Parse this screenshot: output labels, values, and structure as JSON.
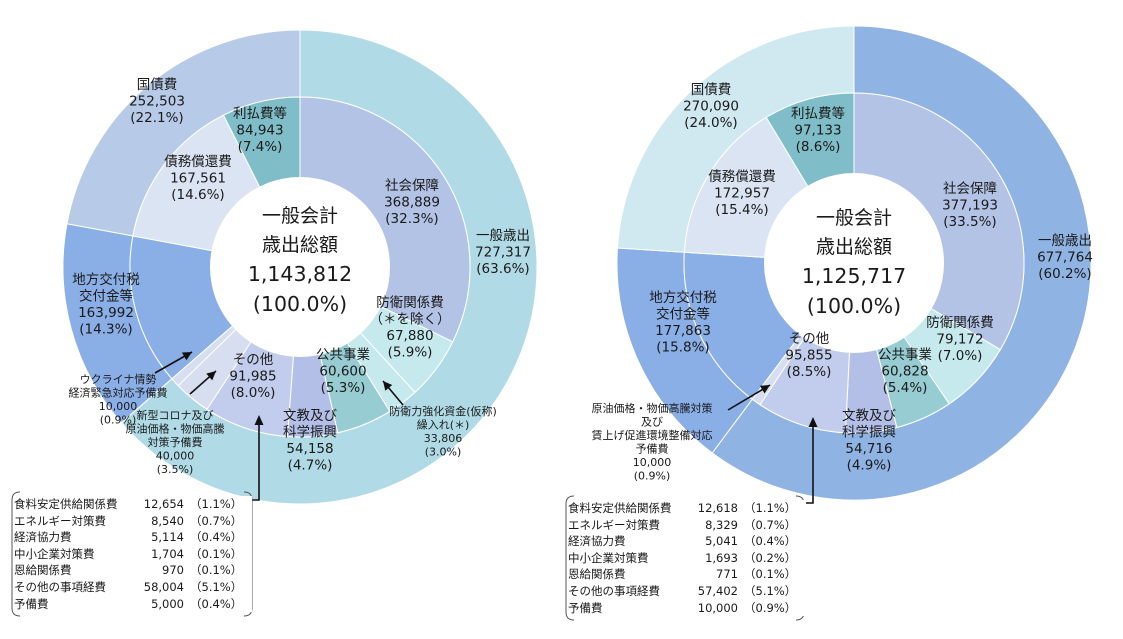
{
  "colors": {
    "general": "#b0dbe6",
    "social": "#b3c3e6",
    "defense": "#c6e9ee",
    "public_works": "#96ccd2",
    "education": "#b3bfe6",
    "other": "#c2ccec",
    "small": "#d6def0",
    "local": "#8aaee6",
    "debt_repay": "#dbe4f3",
    "interest": "#7fbec8",
    "debt_outer": "#b7cbe8",
    "right_general": "#8fb3e3",
    "right_debt_outer": "#d0e8ef"
  },
  "chart_data": [
    {
      "type": "pie",
      "center_title": [
        "一般会計",
        "歳出総額",
        "1,143,812",
        "(100.0%)"
      ],
      "outer": [
        {
          "name": "一般歳出",
          "value": 727317,
          "pct": "63.6%"
        },
        {
          "name": "地方交付税交付金等",
          "value": 163992,
          "pct": "14.3%"
        },
        {
          "name": "国債費",
          "value": 252503,
          "pct": "22.1%"
        }
      ],
      "inner": [
        {
          "name": "社会保障",
          "value": 368889,
          "pct": "32.3%"
        },
        {
          "name": "防衛関係費（＊を除く）",
          "value": 67880,
          "pct": "5.9%"
        },
        {
          "name": "防衛力強化資金(仮称)繰入れ(＊)",
          "value": 33806,
          "pct": "3.0%"
        },
        {
          "name": "公共事業",
          "value": 60600,
          "pct": "5.3%"
        },
        {
          "name": "文教及び科学振興",
          "value": 54158,
          "pct": "4.7%"
        },
        {
          "name": "その他",
          "value": 91985,
          "pct": "8.0%"
        },
        {
          "name": "新型コロナ及び原油価格・物価高騰対策予備費",
          "value": 40000,
          "pct": "3.5%"
        },
        {
          "name": "ウクライナ情勢経済緊急対応予備費",
          "value": 10000,
          "pct": "0.9%"
        },
        {
          "name": "地方交付税交付金等",
          "value": 163992,
          "pct": "14.3%"
        },
        {
          "name": "債務償還費",
          "value": 167561,
          "pct": "14.6%"
        },
        {
          "name": "利払費等",
          "value": 84943,
          "pct": "7.4%"
        }
      ],
      "labels": {
        "general": [
          "一般歳出",
          "727,317",
          "(63.6%)"
        ],
        "social": [
          "社会保障",
          "368,889",
          "(32.3%)"
        ],
        "defense": [
          "防衛関係費",
          "（＊を除く）",
          "67,880",
          "(5.9%)"
        ],
        "public": [
          "公共事業",
          "60,600",
          "(5.3%)"
        ],
        "education": [
          "文教及び",
          "科学振興",
          "54,158",
          "(4.7%)"
        ],
        "other": [
          "その他",
          "91,985",
          "(8.0%)"
        ],
        "local": [
          "地方交付税",
          "交付金等",
          "163,992",
          "(14.3%)"
        ],
        "debt_repay": [
          "債務償還費",
          "167,561",
          "(14.6%)"
        ],
        "interest": [
          "利払費等",
          "84,943",
          "(7.4%)"
        ],
        "kokusai": [
          "国債費",
          "252,503",
          "(22.1%)"
        ],
        "fund": [
          "防衛力強化資金(仮称)",
          "繰入れ(＊)",
          "33,806",
          "(3.0%)"
        ],
        "corona": [
          "新型コロナ及び",
          "原油価格・物価高騰",
          "対策予備費",
          "40,000",
          "(3.5%)"
        ],
        "ukraine": [
          "ウクライナ情勢",
          "経済緊急対応予備費",
          "10,000",
          "(0.9%)"
        ]
      },
      "breakdown": [
        {
          "name": "食料安定供給関係費",
          "value": "12,654",
          "pct": "（1.1%）"
        },
        {
          "name": "エネルギー対策費",
          "value": "8,540",
          "pct": "（0.7%）"
        },
        {
          "name": "経済協力費",
          "value": "5,114",
          "pct": "（0.4%）"
        },
        {
          "name": "中小企業対策費",
          "value": "1,704",
          "pct": "（0.1%）"
        },
        {
          "name": "恩給関係費",
          "value": "970",
          "pct": "（0.1%）"
        },
        {
          "name": "その他の事項経費",
          "value": "58,004",
          "pct": "（5.1%）"
        },
        {
          "name": "予備費",
          "value": "5,000",
          "pct": "（0.4%）"
        }
      ]
    },
    {
      "type": "pie",
      "center_title": [
        "一般会計",
        "歳出総額",
        "1,125,717",
        "(100.0%)"
      ],
      "outer": [
        {
          "name": "一般歳出",
          "value": 677764,
          "pct": "60.2%"
        },
        {
          "name": "地方交付税交付金等",
          "value": 177863,
          "pct": "15.8%"
        },
        {
          "name": "国債費",
          "value": 270090,
          "pct": "24.0%"
        }
      ],
      "inner": [
        {
          "name": "社会保障",
          "value": 377193,
          "pct": "33.5%"
        },
        {
          "name": "防衛関係費",
          "value": 79172,
          "pct": "7.0%"
        },
        {
          "name": "公共事業",
          "value": 60828,
          "pct": "5.4%"
        },
        {
          "name": "文教及び科学振興",
          "value": 54716,
          "pct": "4.9%"
        },
        {
          "name": "その他",
          "value": 95855,
          "pct": "8.5%"
        },
        {
          "name": "原油価格・物価高騰対策及び賃上げ促進環境整備対応予備費",
          "value": 10000,
          "pct": "0.9%"
        },
        {
          "name": "地方交付税交付金等",
          "value": 177863,
          "pct": "15.8%"
        },
        {
          "name": "債務償還費",
          "value": 172957,
          "pct": "15.4%"
        },
        {
          "name": "利払費等",
          "value": 97133,
          "pct": "8.6%"
        }
      ],
      "labels": {
        "general": [
          "一般歳出",
          "677,764",
          "(60.2%)"
        ],
        "social": [
          "社会保障",
          "377,193",
          "(33.5%)"
        ],
        "defense": [
          "防衛関係費",
          "79,172",
          "(7.0%)"
        ],
        "public": [
          "公共事業",
          "60,828",
          "(5.4%)"
        ],
        "education": [
          "文教及び",
          "科学振興",
          "54,716",
          "(4.9%)"
        ],
        "other": [
          "その他",
          "95,855",
          "(8.5%)"
        ],
        "local": [
          "地方交付税",
          "交付金等",
          "177,863",
          "(15.8%)"
        ],
        "debt_repay": [
          "債務償還費",
          "172,957",
          "(15.4%)"
        ],
        "interest": [
          "利払費等",
          "97,133",
          "(8.6%)"
        ],
        "kokusai": [
          "国債費",
          "270,090",
          "(24.0%)"
        ],
        "reserve": [
          "原油価格・物価高騰対策",
          "及び",
          "賃上げ促進環境整備対応",
          "予備費",
          "10,000",
          "(0.9%)"
        ]
      },
      "breakdown": [
        {
          "name": "食料安定供給関係費",
          "value": "12,618",
          "pct": "（1.1%）"
        },
        {
          "name": "エネルギー対策費",
          "value": "8,329",
          "pct": "（0.7%）"
        },
        {
          "name": "経済協力費",
          "value": "5,041",
          "pct": "（0.4%）"
        },
        {
          "name": "中小企業対策費",
          "value": "1,693",
          "pct": "（0.2%）"
        },
        {
          "name": "恩給関係費",
          "value": "771",
          "pct": "（0.1%）"
        },
        {
          "name": "その他の事項経費",
          "value": "57,402",
          "pct": "（5.1%）"
        },
        {
          "name": "予備費",
          "value": "10,000",
          "pct": "（0.9%）"
        }
      ]
    }
  ]
}
